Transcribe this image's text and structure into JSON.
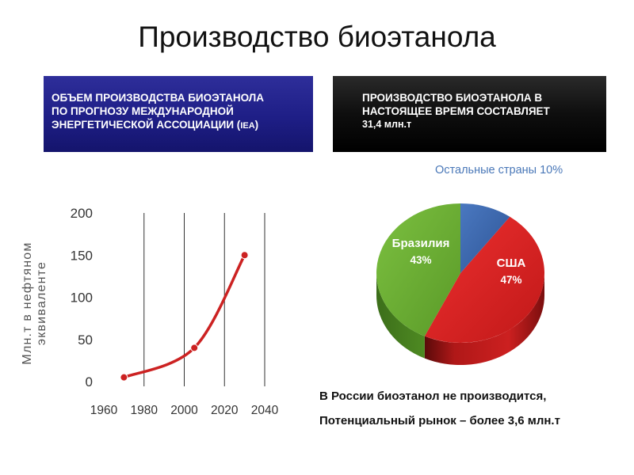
{
  "slide": {
    "title": "Производство биоэтанола"
  },
  "left_box": {
    "line1": "ОБЪЕМ ПРОИЗВОДСТВА БИОЭТАНОЛА",
    "line2": "ПО ПРОГНОЗУ МЕЖДУНАРОДНОЙ",
    "line3": "ЭНЕРГЕТИЧЕСКОЙ АССОЦИАЦИИ (",
    "line3_abbr": "IEA",
    "line3_end": ")",
    "color": "#1e1e86"
  },
  "right_box": {
    "line1": "ПРОИЗВОДСТВО БИОЭТАНОЛА В",
    "line2": "НАСТОЯЩЕЕ ВРЕМЯ СОСТАВЛЯЕТ",
    "line3": "31,4 млн.т",
    "color": "#000000"
  },
  "line_chart_labels": {
    "ylabel_line1": "Млн.т в нефтяном",
    "ylabel_line2": "эквиваленте"
  },
  "pie_labels": {
    "others_label": "Остальные страны ",
    "others_value": "10%"
  },
  "notes": {
    "line1": "В России биоэтанол не производится,",
    "line2": "Потенциальный рынок – более 3,6 млн.т"
  },
  "chart_data": [
    {
      "type": "line",
      "title": "",
      "xlabel": "",
      "ylabel": "Млн.т в нефтяном эквиваленте",
      "x_ticks": [
        "1960",
        "1980",
        "2000",
        "2020",
        "2040"
      ],
      "y_ticks": [
        "0",
        "50",
        "100",
        "150",
        "200"
      ],
      "xlim": [
        1960,
        2040
      ],
      "ylim": [
        0,
        200
      ],
      "grid": "vertical",
      "line_color": "#cc2222",
      "series": [
        {
          "x": [
            1970,
            2005,
            2030
          ],
          "y": [
            5,
            40,
            150
          ]
        }
      ]
    },
    {
      "type": "pie",
      "title": "",
      "slices": [
        {
          "label": "США",
          "value": 47,
          "display": "47%",
          "color": "#dd2222"
        },
        {
          "label": "Бразилия",
          "value": 43,
          "display": "43%",
          "color": "#6aaa30"
        },
        {
          "label": "Остальные страны",
          "value": 10,
          "display": "10%",
          "color": "#3a62a8"
        }
      ]
    }
  ]
}
